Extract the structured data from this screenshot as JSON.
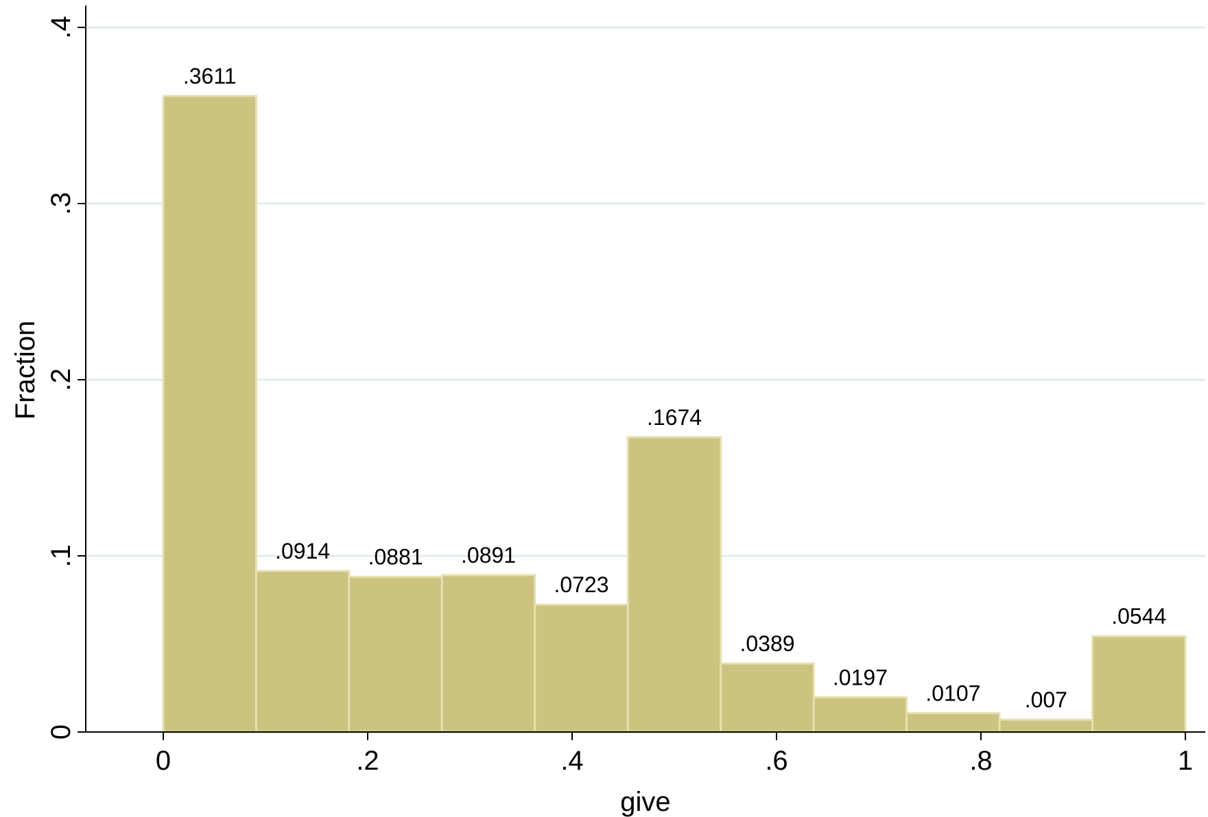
{
  "chart_data": {
    "type": "bar",
    "subtype": "histogram",
    "xlabel": "give",
    "ylabel": "Fraction",
    "xlim": [
      -0.0636,
      1.0636
    ],
    "ylim": [
      0,
      0.4
    ],
    "x_ticks": [
      0,
      0.2,
      0.4,
      0.6,
      0.8,
      1
    ],
    "x_tick_labels": [
      "0",
      ".2",
      ".4",
      ".6",
      ".8",
      "1"
    ],
    "y_ticks": [
      0,
      0.1,
      0.2,
      0.3,
      0.4
    ],
    "y_tick_labels": [
      "0",
      ".1",
      ".2",
      ".3",
      ".4"
    ],
    "grid": "horizontal",
    "bin_edges": [
      0,
      0.0909,
      0.1818,
      0.2727,
      0.3636,
      0.4545,
      0.5455,
      0.6364,
      0.7273,
      0.8182,
      0.9091,
      1.0
    ],
    "values": [
      0.3611,
      0.0914,
      0.0881,
      0.0891,
      0.0723,
      0.1674,
      0.0389,
      0.0197,
      0.0107,
      0.007,
      0.0544
    ],
    "value_labels": [
      ".3611",
      ".0914",
      ".0881",
      ".0891",
      ".0723",
      ".1674",
      ".0389",
      ".0197",
      ".0107",
      ".007",
      ".0544"
    ],
    "colors": {
      "bar_fill": "#CCC380",
      "bar_edge": "#E6E0AE",
      "grid": "#E4EBEB",
      "axis": "#000000",
      "background": "#FFFFFF"
    }
  }
}
